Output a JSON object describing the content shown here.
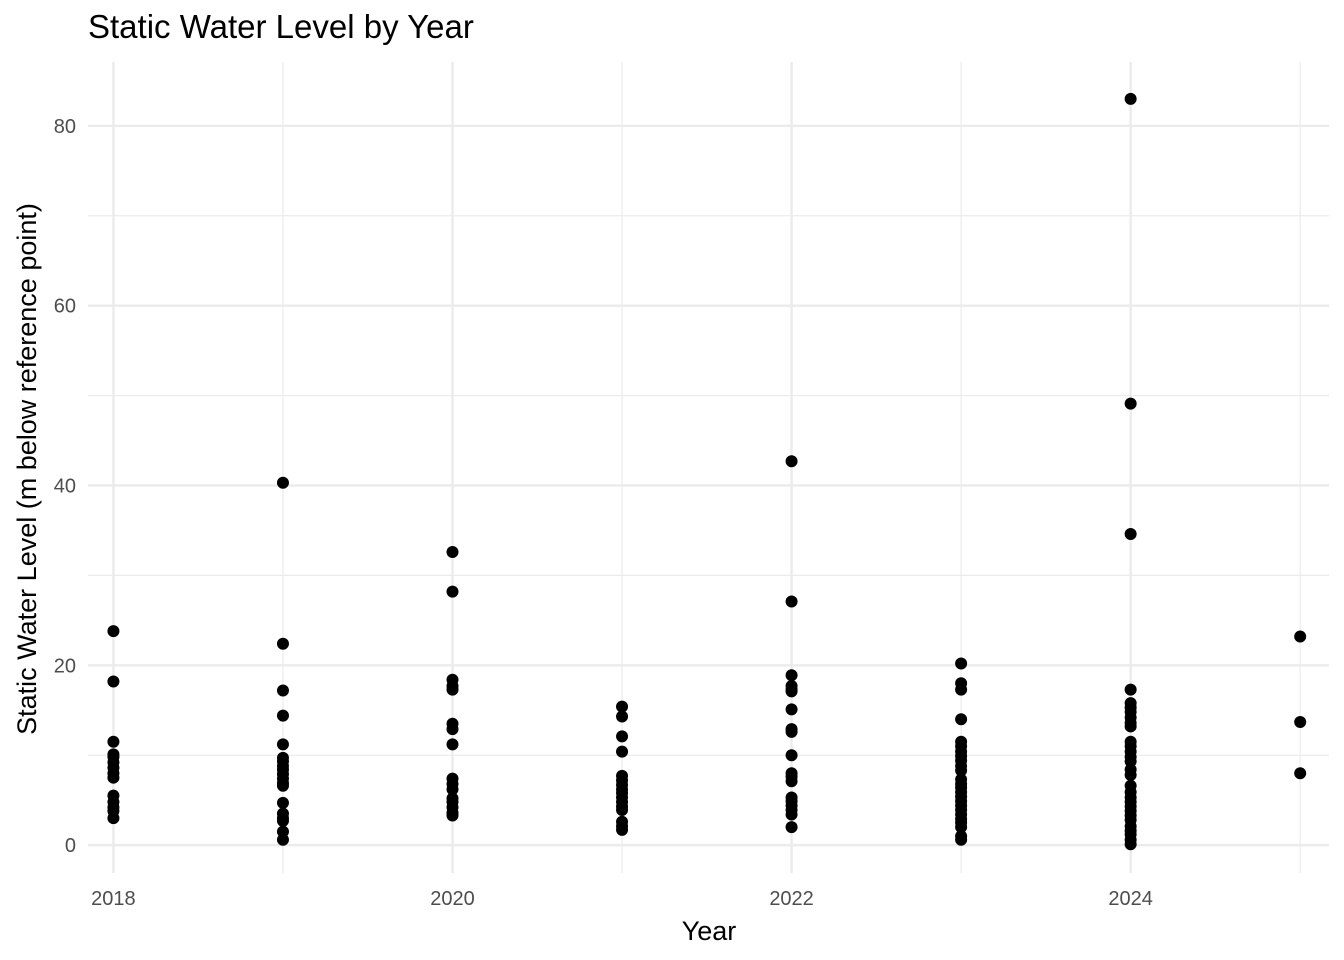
{
  "chart_data": {
    "type": "scatter",
    "title": "Static Water Level by Year",
    "xlabel": "Year",
    "ylabel": "Static Water Level (m below reference point)",
    "xlim": [
      2017.85,
      2025.17
    ],
    "ylim": [
      -3.1,
      87.1
    ],
    "x_ticks": [
      2018,
      2020,
      2022,
      2024
    ],
    "x_tick_labels": [
      "2018",
      "2020",
      "2022",
      "2024"
    ],
    "y_ticks": [
      0,
      20,
      40,
      60,
      80
    ],
    "y_tick_labels": [
      "0",
      "20",
      "40",
      "60",
      "80"
    ],
    "grid": true,
    "legend": "none",
    "point_color": "#000000",
    "series": [
      {
        "x": 2018,
        "y": [
          23.8,
          18.2,
          11.5,
          10.1,
          9.8,
          9.2,
          8.6,
          8.0,
          7.5,
          5.5,
          4.8,
          4.2,
          3.8,
          3.0
        ]
      },
      {
        "x": 2019,
        "y": [
          40.3,
          22.4,
          17.2,
          14.4,
          11.2,
          9.7,
          9.3,
          8.8,
          8.4,
          7.9,
          7.4,
          6.9,
          6.6,
          4.7,
          3.5,
          3.0,
          2.7,
          1.5,
          0.6
        ]
      },
      {
        "x": 2020,
        "y": [
          32.6,
          28.2,
          18.4,
          17.7,
          17.3,
          13.5,
          12.9,
          11.2,
          7.4,
          6.8,
          6.2,
          5.2,
          4.8,
          4.2,
          3.6,
          3.3
        ]
      },
      {
        "x": 2021,
        "y": [
          15.4,
          14.3,
          12.1,
          10.4,
          7.7,
          7.2,
          6.7,
          6.2,
          5.8,
          5.3,
          4.8,
          4.3,
          3.9,
          2.6,
          2.1,
          1.7
        ]
      },
      {
        "x": 2022,
        "y": [
          42.7,
          27.1,
          18.9,
          17.7,
          17.3,
          17.1,
          15.1,
          12.9,
          12.6,
          10.0,
          8.0,
          7.6,
          7.1,
          5.3,
          4.9,
          4.4,
          3.9,
          3.4,
          2.0
        ]
      },
      {
        "x": 2023,
        "y": [
          20.2,
          18.0,
          17.3,
          14.0,
          11.5,
          11.0,
          10.4,
          9.9,
          9.4,
          8.8,
          8.3,
          7.3,
          6.8,
          6.4,
          5.9,
          5.4,
          4.9,
          4.4,
          3.9,
          3.4,
          2.9,
          2.5,
          2.0,
          1.0,
          0.6
        ]
      },
      {
        "x": 2024,
        "y": [
          83.0,
          49.1,
          34.6,
          17.3,
          15.8,
          15.3,
          14.8,
          14.2,
          13.6,
          13.2,
          11.5,
          11.0,
          10.4,
          9.8,
          9.3,
          8.4,
          7.8,
          6.6,
          5.9,
          5.3,
          4.8,
          4.3,
          3.8,
          3.3,
          2.8,
          2.1,
          1.6,
          1.2,
          0.6,
          0.1
        ]
      },
      {
        "x": 2025,
        "y": [
          23.2,
          13.7,
          8.0
        ]
      }
    ]
  }
}
